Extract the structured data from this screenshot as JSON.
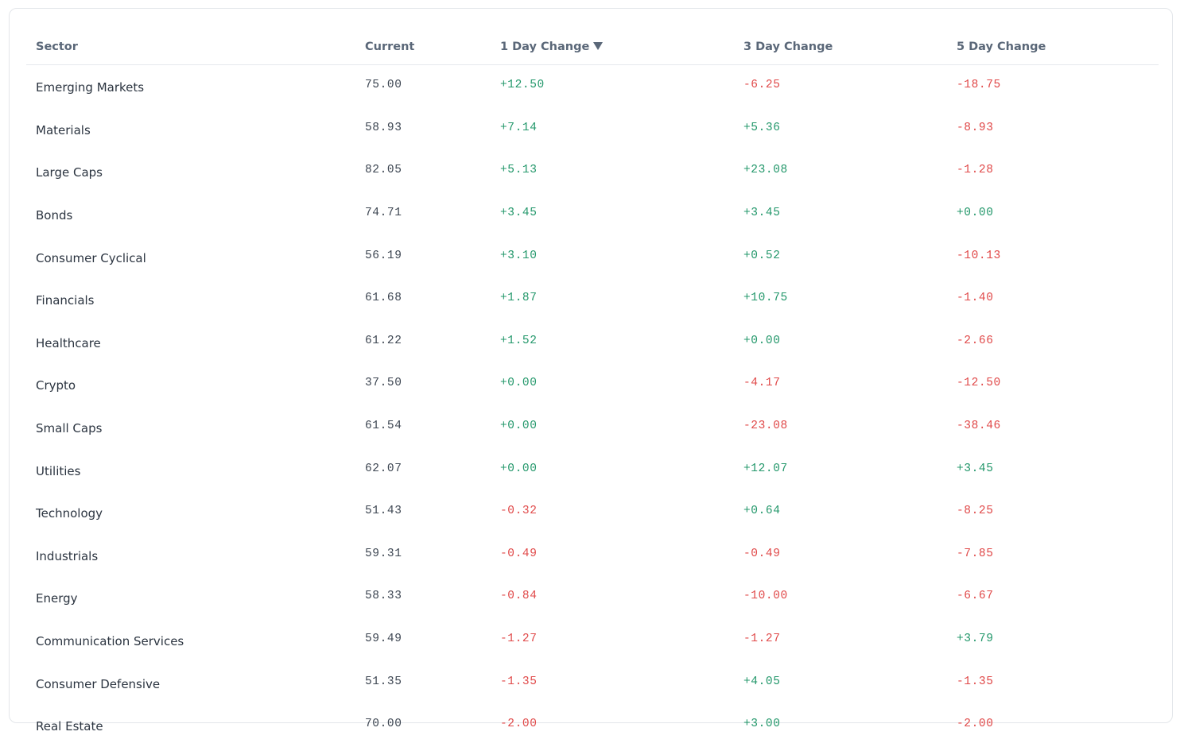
{
  "table": {
    "headers": {
      "sector": "Sector",
      "current": "Current",
      "day1": "1 Day Change",
      "day3": "3 Day Change",
      "day5": "5 Day Change"
    },
    "sort": {
      "column": "1 Day Change",
      "direction": "descending",
      "icon": "triangle-down-icon"
    },
    "colors": {
      "positive": "#22976a",
      "negative": "#e04848"
    },
    "rows": [
      {
        "sector": "Emerging Markets",
        "current": "75.00",
        "day1": "+12.50",
        "day3": "-6.25",
        "day5": "-18.75"
      },
      {
        "sector": "Materials",
        "current": "58.93",
        "day1": "+7.14",
        "day3": "+5.36",
        "day5": "-8.93"
      },
      {
        "sector": "Large Caps",
        "current": "82.05",
        "day1": "+5.13",
        "day3": "+23.08",
        "day5": "-1.28"
      },
      {
        "sector": "Bonds",
        "current": "74.71",
        "day1": "+3.45",
        "day3": "+3.45",
        "day5": "+0.00"
      },
      {
        "sector": "Consumer Cyclical",
        "current": "56.19",
        "day1": "+3.10",
        "day3": "+0.52",
        "day5": "-10.13"
      },
      {
        "sector": "Financials",
        "current": "61.68",
        "day1": "+1.87",
        "day3": "+10.75",
        "day5": "-1.40"
      },
      {
        "sector": "Healthcare",
        "current": "61.22",
        "day1": "+1.52",
        "day3": "+0.00",
        "day5": "-2.66"
      },
      {
        "sector": "Crypto",
        "current": "37.50",
        "day1": "+0.00",
        "day3": "-4.17",
        "day5": "-12.50"
      },
      {
        "sector": "Small Caps",
        "current": "61.54",
        "day1": "+0.00",
        "day3": "-23.08",
        "day5": "-38.46"
      },
      {
        "sector": "Utilities",
        "current": "62.07",
        "day1": "+0.00",
        "day3": "+12.07",
        "day5": "+3.45"
      },
      {
        "sector": "Technology",
        "current": "51.43",
        "day1": "-0.32",
        "day3": "+0.64",
        "day5": "-8.25"
      },
      {
        "sector": "Industrials",
        "current": "59.31",
        "day1": "-0.49",
        "day3": "-0.49",
        "day5": "-7.85"
      },
      {
        "sector": "Energy",
        "current": "58.33",
        "day1": "-0.84",
        "day3": "-10.00",
        "day5": "-6.67"
      },
      {
        "sector": "Communication Services",
        "current": "59.49",
        "day1": "-1.27",
        "day3": "-1.27",
        "day5": "+3.79"
      },
      {
        "sector": "Consumer Defensive",
        "current": "51.35",
        "day1": "-1.35",
        "day3": "+4.05",
        "day5": "-1.35"
      },
      {
        "sector": "Real Estate",
        "current": "70.00",
        "day1": "-2.00",
        "day3": "+3.00",
        "day5": "-2.00"
      }
    ]
  }
}
